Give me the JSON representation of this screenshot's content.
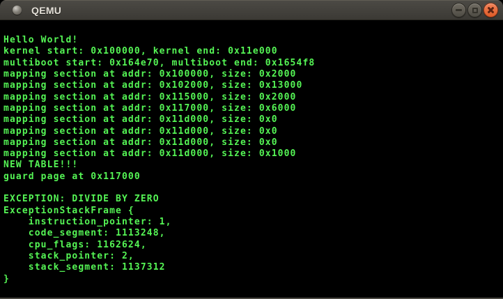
{
  "window": {
    "title": "QEMU",
    "controls": [
      {
        "name": "minimize-button",
        "icon": "minus-icon"
      },
      {
        "name": "maximize-button",
        "icon": "square-icon"
      },
      {
        "name": "close-button",
        "icon": "cross-icon"
      }
    ]
  },
  "colors": {
    "terminal_background": "#000000",
    "terminal_text": "#55f555",
    "titlebar_top": "#4c4a45",
    "titlebar_bottom": "#3b3934",
    "close_button_orange": "#e96b3e"
  },
  "terminal": {
    "lines": [
      "Hello World!",
      "kernel start: 0x100000, kernel end: 0x11e000",
      "multiboot start: 0x164e70, multiboot end: 0x1654f8",
      "mapping section at addr: 0x100000, size: 0x2000",
      "mapping section at addr: 0x102000, size: 0x13000",
      "mapping section at addr: 0x115000, size: 0x2000",
      "mapping section at addr: 0x117000, size: 0x6000",
      "mapping section at addr: 0x11d000, size: 0x0",
      "mapping section at addr: 0x11d000, size: 0x0",
      "mapping section at addr: 0x11d000, size: 0x0",
      "mapping section at addr: 0x11d000, size: 0x1000",
      "NEW TABLE!!!",
      "guard page at 0x117000",
      "",
      "EXCEPTION: DIVIDE BY ZERO",
      "ExceptionStackFrame {",
      "    instruction_pointer: 1,",
      "    code_segment: 1113248,",
      "    cpu_flags: 1162624,",
      "    stack_pointer: 2,",
      "    stack_segment: 1137312",
      "}"
    ]
  }
}
